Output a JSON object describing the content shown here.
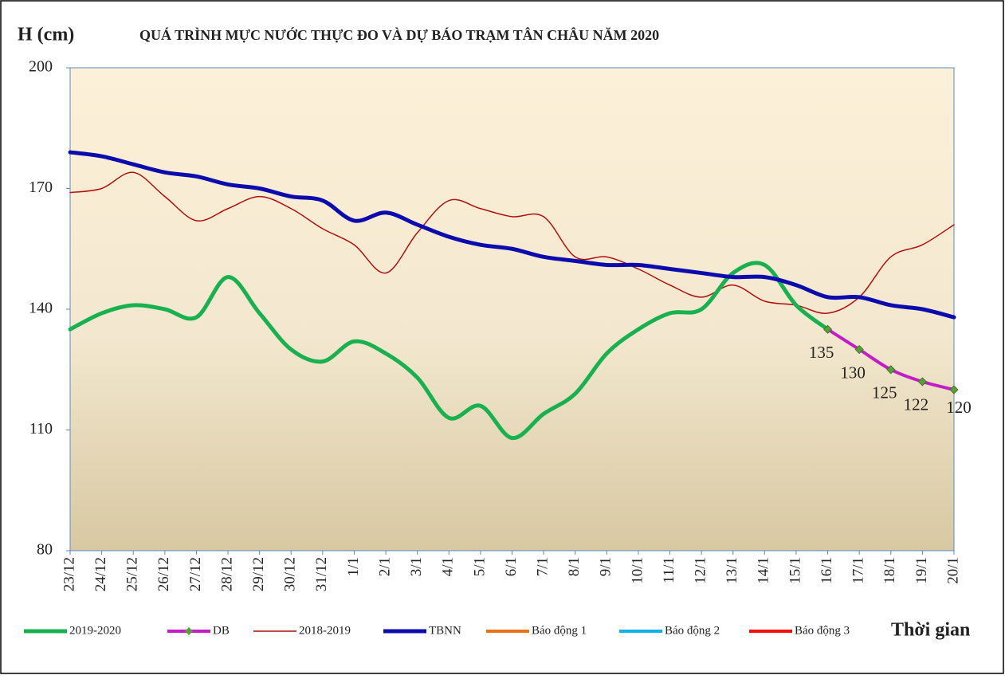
{
  "chart_data": {
    "type": "line",
    "title": "QUÁ TRÌNH MỰC NƯỚC THỰC ĐO VÀ DỰ BÁO TRẠM TÂN CHÂU NĂM 2020",
    "y_label": "H (cm)",
    "x_label": "Thời gian",
    "categories": [
      "23/12",
      "24/12",
      "25/12",
      "26/12",
      "27/12",
      "28/12",
      "29/12",
      "30/12",
      "31/12",
      "1/1",
      "2/1",
      "3/1",
      "4/1",
      "5/1",
      "6/1",
      "7/1",
      "8/1",
      "9/1",
      "10/1",
      "11/1",
      "12/1",
      "13/1",
      "14/1",
      "15/1",
      "16/1",
      "17/1",
      "18/1",
      "19/1",
      "20/1"
    ],
    "ylim": [
      80,
      200
    ],
    "yticks": [
      80,
      110,
      140,
      170,
      200
    ],
    "series": [
      {
        "name": "2019-2020",
        "color": "#19b050",
        "width": 5,
        "values": [
          135,
          139,
          141,
          140,
          138,
          148,
          139,
          130,
          127,
          132,
          129,
          123,
          113,
          116,
          108,
          114,
          119,
          129,
          135,
          139,
          140,
          149,
          151,
          141,
          135,
          null,
          null,
          null,
          null
        ]
      },
      {
        "name": "DB",
        "color": "#c21ec8",
        "width": 4,
        "marker": "#5a9e3a",
        "values": [
          null,
          null,
          null,
          null,
          null,
          null,
          null,
          null,
          null,
          null,
          null,
          null,
          null,
          null,
          null,
          null,
          null,
          null,
          null,
          null,
          null,
          null,
          null,
          null,
          135,
          130,
          125,
          122,
          120
        ],
        "value_labels": [
          null,
          null,
          null,
          null,
          null,
          null,
          null,
          null,
          null,
          null,
          null,
          null,
          null,
          null,
          null,
          null,
          null,
          null,
          null,
          null,
          null,
          null,
          null,
          null,
          "135",
          "130",
          "125",
          "122",
          "120"
        ]
      },
      {
        "name": "2018-2019",
        "color": "#b00f0f",
        "width": 1.5,
        "values": [
          169,
          170,
          174,
          168,
          162,
          165,
          168,
          165,
          160,
          156,
          149,
          159,
          167,
          165,
          163,
          163,
          153,
          153,
          150,
          146,
          143,
          146,
          142,
          141,
          139,
          143,
          153,
          156,
          161
        ]
      },
      {
        "name": "TBNN",
        "color": "#0c0cae",
        "width": 5,
        "values": [
          179,
          178,
          176,
          174,
          173,
          171,
          170,
          168,
          167,
          162,
          164,
          161,
          158,
          156,
          155,
          153,
          152,
          151,
          151,
          150,
          149,
          148,
          148,
          146,
          143,
          143,
          141,
          140,
          138
        ]
      },
      {
        "name": "Báo động 1",
        "color": "#e8731c",
        "width": 4,
        "values": [
          null,
          null,
          null,
          null,
          null,
          null,
          null,
          null,
          null,
          null,
          null,
          null,
          null,
          null,
          null,
          null,
          null,
          null,
          null,
          null,
          null,
          null,
          null,
          null,
          null,
          null,
          null,
          null,
          null
        ]
      },
      {
        "name": "Báo động 2",
        "color": "#12b0ea",
        "width": 4,
        "values": [
          null,
          null,
          null,
          null,
          null,
          null,
          null,
          null,
          null,
          null,
          null,
          null,
          null,
          null,
          null,
          null,
          null,
          null,
          null,
          null,
          null,
          null,
          null,
          null,
          null,
          null,
          null,
          null,
          null
        ]
      },
      {
        "name": "Báo động 3",
        "color": "#f21010",
        "width": 4,
        "values": [
          null,
          null,
          null,
          null,
          null,
          null,
          null,
          null,
          null,
          null,
          null,
          null,
          null,
          null,
          null,
          null,
          null,
          null,
          null,
          null,
          null,
          null,
          null,
          null,
          null,
          null,
          null,
          null,
          null
        ]
      }
    ]
  }
}
